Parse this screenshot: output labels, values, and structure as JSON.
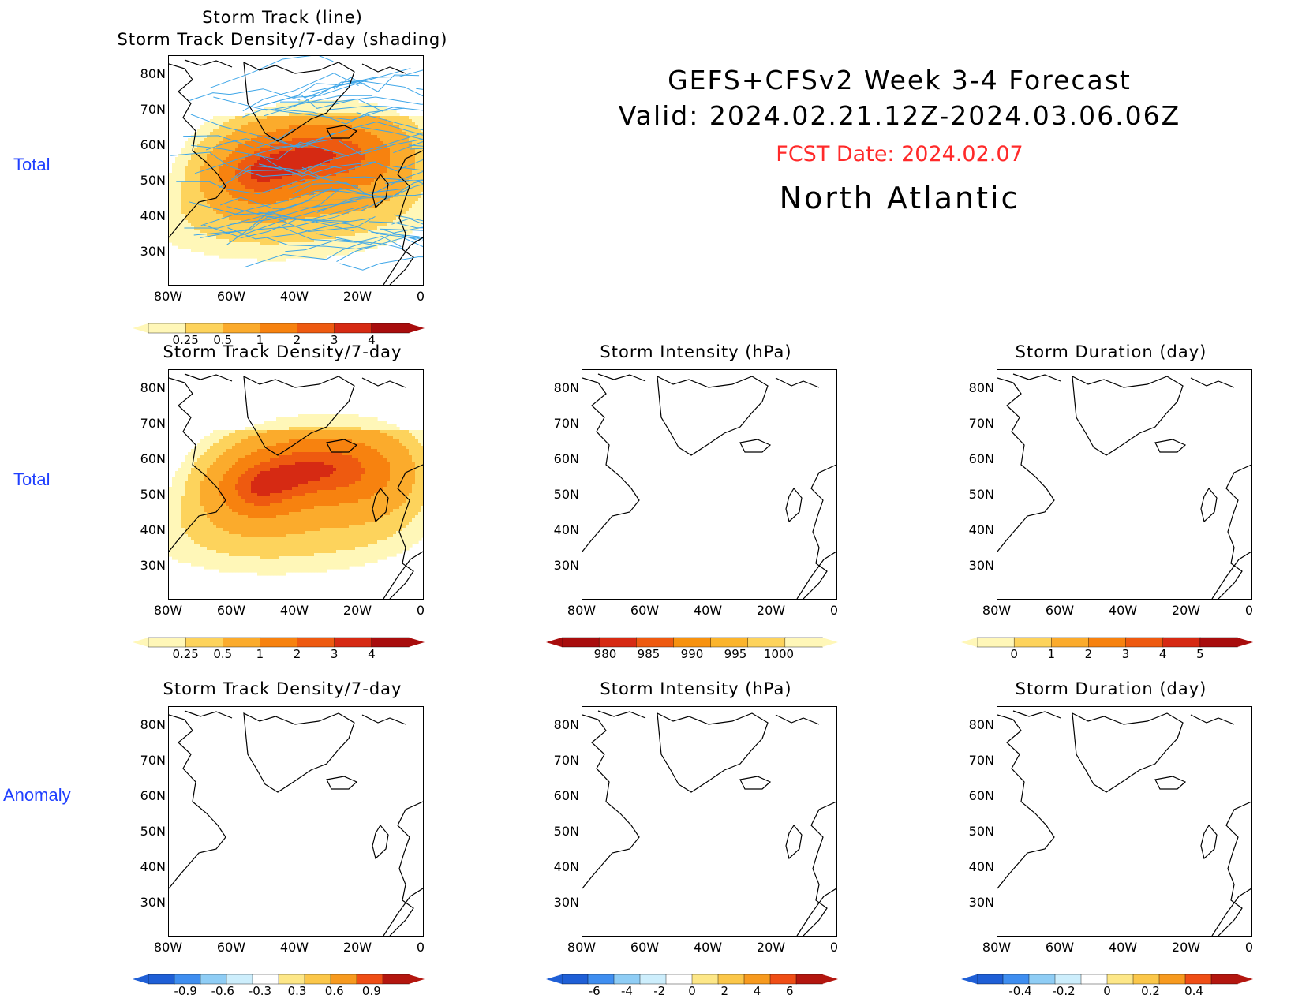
{
  "header": {
    "line1": "GEFS+CFSv2 Week 3-4 Forecast",
    "line2": "Valid: 2024.02.21.12Z-2024.03.06.06Z",
    "fcst": "FCST Date: 2024.02.07",
    "region": "North Atlantic"
  },
  "row_labels": [
    "Total",
    "Total",
    "Anomaly"
  ],
  "lat_labels": [
    "80N",
    "70N",
    "60N",
    "50N",
    "40N",
    "30N"
  ],
  "lon_labels": [
    "80W",
    "60W",
    "40W",
    "20W",
    "0"
  ],
  "colors": {
    "density": [
      "#fff7b8",
      "#fdd35c",
      "#fbab2c",
      "#f7820f",
      "#ee5a10",
      "#d62a13",
      "#a80d0d"
    ],
    "intensity": [
      "#a80d0d",
      "#d62a13",
      "#ee5a10",
      "#f7920f",
      "#fbb42c",
      "#fdd35c",
      "#fff7b8"
    ],
    "duration": [
      "#fff7b8",
      "#fdd35c",
      "#fbab2c",
      "#f7820f",
      "#ee5a10",
      "#d62a13",
      "#a80d0d"
    ],
    "anomaly": [
      "#1f5fd6",
      "#3f8ef0",
      "#8fcdf5",
      "#cdeefc",
      "#ffffff",
      "#fde788",
      "#fbc74a",
      "#f79a1f",
      "#ef4e16",
      "#b3160f"
    ],
    "track_line": "#3ea6e8"
  },
  "panels": [
    {
      "id": "top-density-tracks",
      "title_lines": [
        "Storm Track (line)",
        "Storm Track Density/7-day (shading)"
      ],
      "colorbar": {
        "scale": "density",
        "labels": [
          "0.25",
          "0.5",
          "1",
          "2",
          "3",
          "4"
        ]
      }
    },
    {
      "id": "total-density",
      "title_lines": [
        "Storm Track Density/7-day"
      ],
      "colorbar": {
        "scale": "density",
        "labels": [
          "0.25",
          "0.5",
          "1",
          "2",
          "3",
          "4"
        ]
      }
    },
    {
      "id": "total-intensity",
      "title_lines": [
        "Storm Intensity (hPa)"
      ],
      "colorbar": {
        "scale": "intensity",
        "labels": [
          "980",
          "985",
          "990",
          "995",
          "1000"
        ]
      }
    },
    {
      "id": "total-duration",
      "title_lines": [
        "Storm Duration (day)"
      ],
      "colorbar": {
        "scale": "duration",
        "labels": [
          "0",
          "1",
          "2",
          "3",
          "4",
          "5"
        ]
      }
    },
    {
      "id": "anom-density",
      "title_lines": [
        "Storm Track Density/7-day"
      ],
      "colorbar": {
        "scale": "anomaly",
        "labels": [
          "-0.9",
          "-0.6",
          "-0.3",
          "0.3",
          "0.6",
          "0.9"
        ]
      }
    },
    {
      "id": "anom-intensity",
      "title_lines": [
        "Storm Intensity (hPa)"
      ],
      "colorbar": {
        "scale": "anomaly",
        "labels": [
          "-6",
          "-4",
          "-2",
          "0",
          "2",
          "4",
          "6"
        ]
      }
    },
    {
      "id": "anom-duration",
      "title_lines": [
        "Storm Duration (day)"
      ],
      "colorbar": {
        "scale": "anomaly",
        "labels": [
          "-0.4",
          "-0.2",
          "0",
          "0.2",
          "0.4"
        ]
      }
    }
  ]
}
